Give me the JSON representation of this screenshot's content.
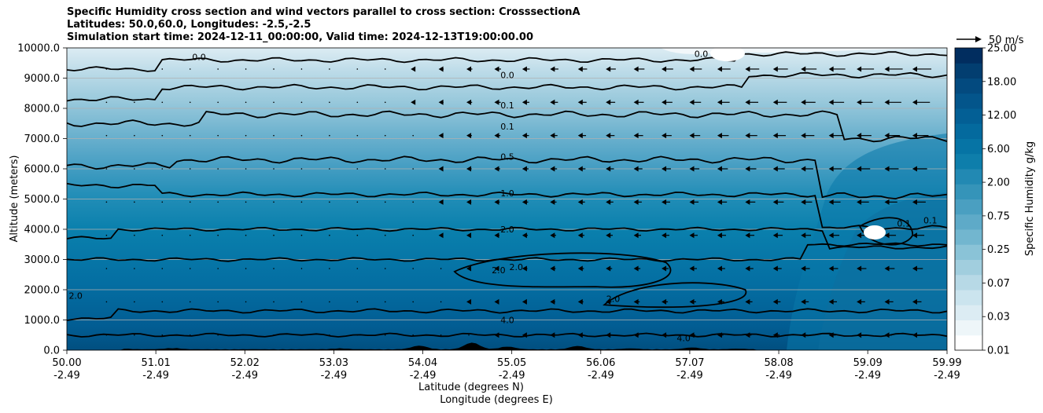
{
  "chart_data": {
    "type": "contourf",
    "title_lines": [
      "Specific Humidity cross section and wind vectors parallel to cross section: CrosssectionA",
      "Latitudes: 50.0,60.0, Longitudes: -2.5,-2.5",
      "Simulation start time: 2024-12-11_00:00:00, Valid time: 2024-12-13T19:00:00.00"
    ],
    "ylabel": "Altitude (meters)",
    "xlabel_lines": [
      "Latitude (degrees N)",
      "Longitude (degrees E)"
    ],
    "ylim": [
      0,
      10000
    ],
    "yticks": [
      "0.0",
      "1000.0",
      "2000.0",
      "3000.0",
      "4000.0",
      "5000.0",
      "6000.0",
      "7000.0",
      "8000.0",
      "9000.0",
      "10000.0"
    ],
    "xticks_lat": [
      "50.00",
      "51.01",
      "52.02",
      "53.03",
      "54.04",
      "55.05",
      "56.06",
      "57.07",
      "58.08",
      "59.09",
      "59.99"
    ],
    "xticks_lon": [
      "-2.49",
      "-2.49",
      "-2.49",
      "-2.49",
      "-2.49",
      "-2.49",
      "-2.49",
      "-2.49",
      "-2.49",
      "-2.49",
      "-2.49"
    ],
    "colorbar_label": "Specific Humidity g/kg",
    "colorbar_ticks": [
      "0.01",
      "0.03",
      "0.07",
      "0.25",
      "0.75",
      "2.00",
      "6.00",
      "12.00",
      "18.00",
      "25.00"
    ],
    "colorbar_levels": 20,
    "quiver_key": "50 m/s",
    "contour_labels": [
      {
        "text": "0.0",
        "lat": 55.0,
        "alt": 9100
      },
      {
        "text": "0.1",
        "lat": 55.0,
        "alt": 8100
      },
      {
        "text": "0.1",
        "lat": 55.0,
        "alt": 7400
      },
      {
        "text": "0.5",
        "lat": 55.0,
        "alt": 6400
      },
      {
        "text": "1.0",
        "lat": 55.0,
        "alt": 5200
      },
      {
        "text": "2.0",
        "lat": 55.0,
        "alt": 4000
      },
      {
        "text": "2.0",
        "lat": 54.9,
        "alt": 2650
      },
      {
        "text": "2.0",
        "lat": 55.1,
        "alt": 2750
      },
      {
        "text": "2.0",
        "lat": 56.2,
        "alt": 1700
      },
      {
        "text": "4.0",
        "lat": 55.0,
        "alt": 1000
      },
      {
        "text": "2.0",
        "lat": 50.1,
        "alt": 1800
      },
      {
        "text": "0.0",
        "lat": 51.5,
        "alt": 9700
      },
      {
        "text": "0.0",
        "lat": 57.2,
        "alt": 9800
      },
      {
        "text": "0.1",
        "lat": 59.5,
        "alt": 4200
      },
      {
        "text": "0.1",
        "lat": 59.8,
        "alt": 4300
      },
      {
        "text": "4.0",
        "lat": 57.0,
        "alt": 400
      }
    ],
    "colors": {
      "bottom": "#025990",
      "mid": "#0f7faf",
      "upper": "#5aa8c9",
      "top": "#dcecf3",
      "terrain": "#000000"
    }
  }
}
